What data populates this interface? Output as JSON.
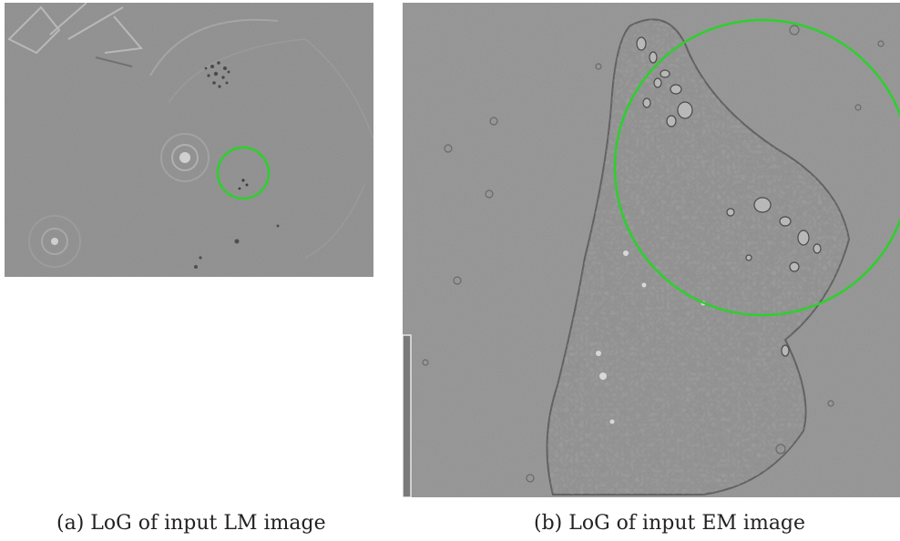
{
  "figure": {
    "panel_a": {
      "caption": "(a) LoG of input LM image"
    },
    "panel_b": {
      "caption": "(b) LoG of input EM image"
    }
  },
  "colors": {
    "background": "#ffffff",
    "image_gray": "#8c8c8c",
    "highlight_circle": "#2bd12b"
  }
}
